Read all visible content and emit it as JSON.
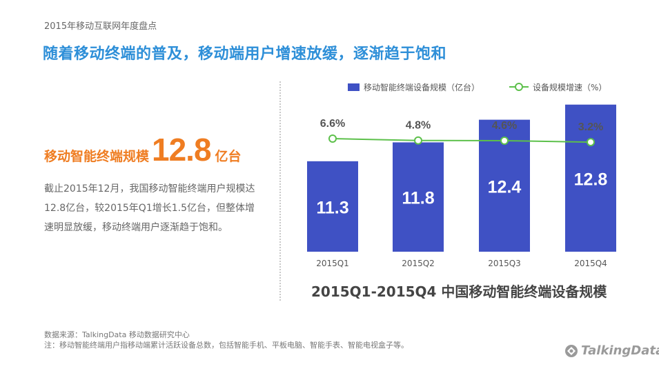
{
  "header": {
    "title": "2015年移动互联网年度盘点"
  },
  "headline": "随着移动终端的普及，移动端用户增速放缓，逐渐趋于饱和",
  "stat": {
    "label": "移动智能终端规模",
    "value": "12.8",
    "unit": "亿台"
  },
  "description": "截止2015年12月，我国移动智能终端用户规模达12.8亿台，较2015年Q1增长1.5亿台，但整体增速明显放缓，移动终端用户逐渐趋于饱和。",
  "colors": {
    "accent_blue": "#2e8fd8",
    "bar": "#3f51c4",
    "line": "#5cc04a",
    "orange": "#ef7d22"
  },
  "chart_data": {
    "type": "bar",
    "title": "2015Q1-2015Q4 中国移动智能终端设备规模",
    "categories": [
      "2015Q1",
      "2015Q2",
      "2015Q3",
      "2015Q4"
    ],
    "series": [
      {
        "name": "移动智能终端设备规模（亿台）",
        "type": "bar",
        "values": [
          11.3,
          11.8,
          12.4,
          12.8
        ],
        "labels": [
          "11.3",
          "11.8",
          "12.4",
          "12.8"
        ]
      },
      {
        "name": "设备规模增速（%）",
        "type": "line",
        "values": [
          6.6,
          4.8,
          4.6,
          3.2
        ],
        "labels": [
          "6.6%",
          "4.8%",
          "4.6%",
          "3.2%"
        ]
      }
    ],
    "legend_position": "top-right",
    "grid": false
  },
  "source": {
    "line1": "数据来源：TalkingData 移动数据研究中心",
    "line2": "注：移动智能终端用户指移动端累计活跃设备总数，包括智能手机、平板电脑、智能手表、智能电视盒子等。"
  },
  "logo": {
    "text": "TalkingData"
  }
}
